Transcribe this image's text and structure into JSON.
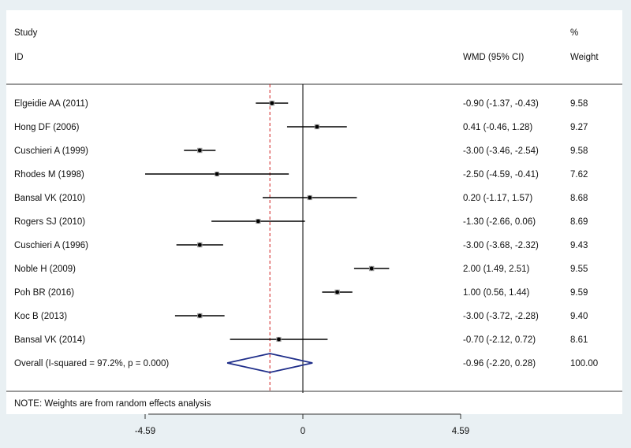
{
  "chart_data": {
    "type": "forest",
    "header": {
      "study_label_line1": "Study",
      "study_label_line2": "ID",
      "effect_label": "WMD (95% CI)",
      "weight_label_line1": "%",
      "weight_label_line2": "Weight"
    },
    "studies": [
      {
        "name": "Elgeidie AA (2011)",
        "wmd": -0.9,
        "lower": -1.37,
        "upper": -0.43,
        "ci_text": "-0.90 (-1.37, -0.43)",
        "weight": "9.58"
      },
      {
        "name": "Hong DF (2006)",
        "wmd": 0.41,
        "lower": -0.46,
        "upper": 1.28,
        "ci_text": "0.41 (-0.46, 1.28)",
        "weight": "9.27"
      },
      {
        "name": "Cuschieri A (1999)",
        "wmd": -3.0,
        "lower": -3.46,
        "upper": -2.54,
        "ci_text": "-3.00 (-3.46, -2.54)",
        "weight": "9.58"
      },
      {
        "name": "Rhodes M (1998)",
        "wmd": -2.5,
        "lower": -4.59,
        "upper": -0.41,
        "ci_text": "-2.50 (-4.59, -0.41)",
        "weight": "7.62"
      },
      {
        "name": "Bansal VK (2010)",
        "wmd": 0.2,
        "lower": -1.17,
        "upper": 1.57,
        "ci_text": "0.20 (-1.17, 1.57)",
        "weight": "8.68"
      },
      {
        "name": "Rogers SJ (2010)",
        "wmd": -1.3,
        "lower": -2.66,
        "upper": 0.06,
        "ci_text": "-1.30 (-2.66, 0.06)",
        "weight": "8.69"
      },
      {
        "name": "Cuschieri A (1996)",
        "wmd": -3.0,
        "lower": -3.68,
        "upper": -2.32,
        "ci_text": "-3.00 (-3.68, -2.32)",
        "weight": "9.43"
      },
      {
        "name": "Noble H (2009)",
        "wmd": 2.0,
        "lower": 1.49,
        "upper": 2.51,
        "ci_text": "2.00 (1.49, 2.51)",
        "weight": "9.55"
      },
      {
        "name": "Poh BR (2016)",
        "wmd": 1.0,
        "lower": 0.56,
        "upper": 1.44,
        "ci_text": "1.00 (0.56, 1.44)",
        "weight": "9.59"
      },
      {
        "name": "Koc B (2013)",
        "wmd": -3.0,
        "lower": -3.72,
        "upper": -2.28,
        "ci_text": "-3.00 (-3.72, -2.28)",
        "weight": "9.40"
      },
      {
        "name": "Bansal VK (2014)",
        "wmd": -0.7,
        "lower": -2.12,
        "upper": 0.72,
        "ci_text": "-0.70 (-2.12, 0.72)",
        "weight": "8.61"
      }
    ],
    "overall": {
      "label": "Overall  (I-squared = 97.2%, p = 0.000)",
      "wmd": -0.96,
      "lower": -2.2,
      "upper": 0.28,
      "ci_text": "-0.96 (-2.20, 0.28)",
      "weight": "100.00"
    },
    "note": "NOTE: Weights are from random effects analysis",
    "x_ticks": [
      {
        "value": -4.59,
        "label": "-4.59"
      },
      {
        "value": 0,
        "label": "0"
      },
      {
        "value": 4.59,
        "label": "4.59"
      }
    ],
    "xlim": [
      -4.59,
      4.59
    ],
    "null_line": 0,
    "colors": {
      "diamond": "#1f2e8a",
      "overall_line": "#d02020",
      "marker": "#000000",
      "background": "#e9f0f3"
    }
  }
}
